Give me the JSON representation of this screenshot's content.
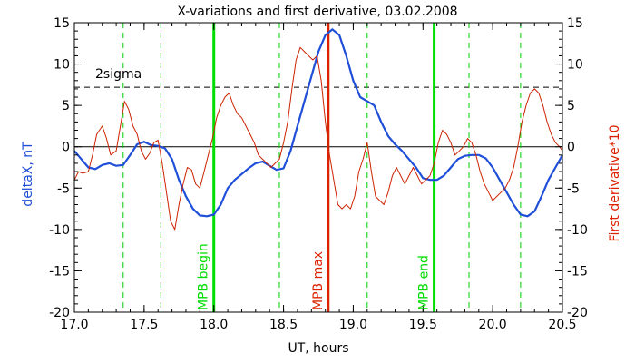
{
  "chart_data": {
    "type": "line",
    "title": "X-variations and first derivative, 03.02.2008",
    "xlabel": "UT, hours",
    "ylabel_left": "deltaX, nT",
    "ylabel_right": "First derivative*10",
    "xlim": [
      17.0,
      20.5
    ],
    "ylim_left": [
      -20,
      15
    ],
    "ylim_right": [
      -20,
      15
    ],
    "x_ticks": [
      "17.0",
      "17.5",
      "18.0",
      "18.5",
      "19.0",
      "19.5",
      "20.0",
      "20.5"
    ],
    "y_ticks": [
      "-20",
      "-15",
      "-10",
      "-5",
      "0",
      "5",
      "10",
      "15"
    ],
    "colors": {
      "deltaX": "#1f4fd8",
      "derivative": "#cc2200",
      "mpb_edge": "#00dd00",
      "mpb_max": "#dd2200",
      "dashed_green": "#00cc00",
      "axis": "#000000",
      "ylabel_left": "#1f4fd8",
      "ylabel_right": "#dd2200"
    },
    "sigma_line": {
      "y": 7.2,
      "label": "2sigma"
    },
    "zero_line": 0,
    "vlines_dashed": [
      17.35,
      17.62,
      18.47,
      19.1,
      19.83,
      20.2
    ],
    "vlines_solid": [
      {
        "x": 18.0,
        "label": "MPB begin",
        "color": "#00dd00"
      },
      {
        "x": 18.82,
        "label": "MPB max",
        "color": "#dd2200"
      },
      {
        "x": 19.58,
        "label": "MPB end",
        "color": "#00dd00"
      }
    ],
    "series": [
      {
        "name": "deltaX",
        "axis": "left",
        "x": [
          17.0,
          17.05,
          17.1,
          17.15,
          17.2,
          17.25,
          17.3,
          17.35,
          17.4,
          17.45,
          17.5,
          17.55,
          17.6,
          17.65,
          17.7,
          17.75,
          17.8,
          17.85,
          17.9,
          17.95,
          18.0,
          18.05,
          18.1,
          18.15,
          18.2,
          18.25,
          18.3,
          18.35,
          18.4,
          18.45,
          18.5,
          18.55,
          18.6,
          18.65,
          18.7,
          18.75,
          18.8,
          18.85,
          18.9,
          18.95,
          19.0,
          19.05,
          19.1,
          19.15,
          19.2,
          19.25,
          19.3,
          19.35,
          19.4,
          19.45,
          19.5,
          19.55,
          19.6,
          19.65,
          19.7,
          19.75,
          19.8,
          19.85,
          19.9,
          19.95,
          20.0,
          20.05,
          20.1,
          20.15,
          20.2,
          20.25,
          20.3,
          20.35,
          20.4,
          20.45,
          20.5
        ],
        "y": [
          -0.5,
          -1.5,
          -2.5,
          -2.7,
          -2.2,
          -2.0,
          -2.3,
          -2.2,
          -1.0,
          0.3,
          0.6,
          0.2,
          0.1,
          -0.2,
          -1.5,
          -4.0,
          -6.0,
          -7.5,
          -8.3,
          -8.4,
          -8.2,
          -7.0,
          -5.0,
          -4.0,
          -3.3,
          -2.6,
          -2.0,
          -1.8,
          -2.3,
          -2.8,
          -2.6,
          -0.5,
          2.5,
          5.5,
          8.5,
          11.5,
          13.5,
          14.2,
          13.5,
          11.0,
          8.0,
          6.0,
          5.5,
          5.0,
          3.0,
          1.3,
          0.3,
          -0.5,
          -1.5,
          -2.5,
          -3.8,
          -4.0,
          -4.0,
          -3.5,
          -2.5,
          -1.5,
          -1.1,
          -1.0,
          -1.0,
          -1.4,
          -2.5,
          -4.0,
          -5.5,
          -7.0,
          -8.2,
          -8.4,
          -7.8,
          -6.0,
          -4.0,
          -2.5,
          -1.0
        ]
      },
      {
        "name": "First derivative*10",
        "axis": "right",
        "x": [
          17.0,
          17.03,
          17.06,
          17.1,
          17.13,
          17.16,
          17.2,
          17.23,
          17.26,
          17.3,
          17.33,
          17.36,
          17.39,
          17.42,
          17.45,
          17.48,
          17.51,
          17.54,
          17.57,
          17.6,
          17.63,
          17.66,
          17.69,
          17.72,
          17.75,
          17.78,
          17.81,
          17.84,
          17.87,
          17.9,
          17.93,
          17.96,
          17.99,
          18.02,
          18.05,
          18.08,
          18.11,
          18.14,
          18.17,
          18.2,
          18.23,
          18.26,
          18.29,
          18.32,
          18.35,
          18.38,
          18.41,
          18.44,
          18.47,
          18.5,
          18.53,
          18.56,
          18.59,
          18.62,
          18.65,
          18.68,
          18.71,
          18.74,
          18.77,
          18.8,
          18.83,
          18.86,
          18.89,
          18.92,
          18.95,
          18.98,
          19.01,
          19.04,
          19.07,
          19.1,
          19.13,
          19.16,
          19.19,
          19.22,
          19.25,
          19.28,
          19.31,
          19.34,
          19.37,
          19.4,
          19.43,
          19.46,
          19.49,
          19.52,
          19.55,
          19.58,
          19.61,
          19.64,
          19.67,
          19.7,
          19.73,
          19.76,
          19.79,
          19.82,
          19.85,
          19.88,
          19.91,
          19.94,
          19.97,
          20.0,
          20.03,
          20.06,
          20.09,
          20.12,
          20.15,
          20.18,
          20.21,
          20.24,
          20.27,
          20.3,
          20.33,
          20.36,
          20.39,
          20.42,
          20.45,
          20.48,
          20.5
        ],
        "y": [
          -4.0,
          -3.0,
          -3.2,
          -3.0,
          -1.0,
          1.5,
          2.5,
          1.0,
          -1.0,
          -0.5,
          2.5,
          5.5,
          4.5,
          2.5,
          1.5,
          -0.5,
          -1.5,
          -0.8,
          0.5,
          0.8,
          -2.0,
          -5.5,
          -9.0,
          -10.0,
          -7.0,
          -4.5,
          -2.5,
          -2.8,
          -4.5,
          -5.0,
          -3.0,
          -1.0,
          1.0,
          3.5,
          5.0,
          6.0,
          6.5,
          5.0,
          4.0,
          3.5,
          2.5,
          1.5,
          0.5,
          -1.0,
          -1.5,
          -2.0,
          -2.5,
          -2.0,
          -1.5,
          0.5,
          3.0,
          7.0,
          10.5,
          12.0,
          11.5,
          11.0,
          10.5,
          11.0,
          8.0,
          3.0,
          -1.0,
          -4.0,
          -7.0,
          -7.5,
          -7.0,
          -7.5,
          -6.0,
          -3.0,
          -1.5,
          0.5,
          -3.0,
          -6.0,
          -6.5,
          -7.0,
          -5.5,
          -3.5,
          -2.5,
          -3.5,
          -4.5,
          -3.5,
          -2.5,
          -3.5,
          -4.5,
          -4.0,
          -3.5,
          -2.0,
          0.5,
          2.0,
          1.5,
          0.5,
          -1.0,
          -0.5,
          0.0,
          1.0,
          0.5,
          -1.0,
          -3.0,
          -4.5,
          -5.5,
          -6.5,
          -6.0,
          -5.5,
          -5.0,
          -4.0,
          -2.5,
          0.0,
          3.0,
          5.0,
          6.5,
          7.0,
          6.5,
          5.0,
          3.0,
          1.5,
          0.5,
          0.0,
          -0.5
        ]
      }
    ]
  }
}
